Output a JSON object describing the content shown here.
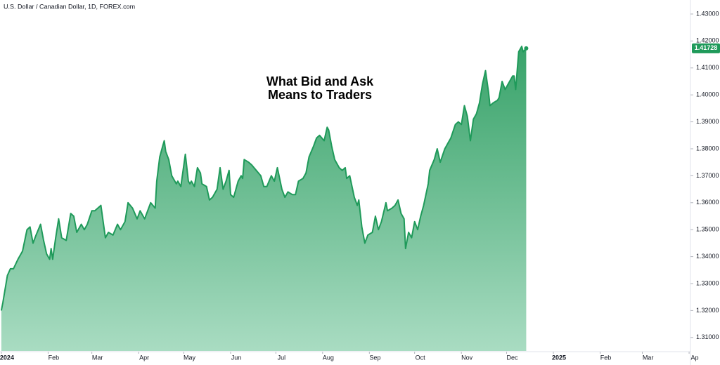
{
  "chart_data": {
    "type": "area",
    "title": "U.S. Dollar / Canadian Dollar, 1D, FOREX.com",
    "annotation": [
      "What Bid and Ask",
      "Means to Traders"
    ],
    "color": "#1f9a5a",
    "x": [
      0,
      1,
      4,
      6,
      8,
      11,
      14,
      17,
      19,
      21,
      23,
      26,
      28,
      30,
      32,
      33,
      34,
      36,
      38,
      40,
      43,
      46,
      48,
      50,
      53,
      55,
      57,
      60,
      62,
      66,
      69,
      71,
      74,
      77,
      79,
      82,
      84,
      87,
      90,
      92,
      95,
      97,
      99,
      102,
      103,
      105,
      107,
      108,
      109,
      111,
      113,
      116,
      117,
      119,
      122,
      124,
      125,
      126,
      128,
      130,
      132,
      133,
      136,
      138,
      140,
      143,
      145,
      147,
      149,
      151,
      152,
      154,
      157,
      159,
      160,
      161,
      164,
      166,
      169,
      172,
      174,
      176,
      179,
      181,
      183,
      186,
      188,
      190,
      193,
      195,
      197,
      200,
      202,
      204,
      207,
      209,
      211,
      214,
      216,
      217,
      219,
      221,
      224,
      226,
      228,
      229,
      231,
      234,
      236,
      237,
      239,
      241,
      243,
      246,
      248,
      250,
      252,
      255,
      256,
      259,
      261,
      263,
      265,
      267,
      268,
      270,
      272,
      274,
      276,
      278,
      280,
      283,
      284,
      287,
      289,
      291,
      294,
      296,
      298,
      301,
      303,
      305,
      307,
      309,
      311,
      313,
      315,
      317,
      319,
      321,
      323,
      324,
      326,
      329,
      330,
      332,
      334,
      336,
      339,
      340,
      341,
      343,
      345,
      346,
      348
    ],
    "values": [
      1.32,
      1.323,
      1.333,
      1.3355,
      1.3355,
      1.339,
      1.342,
      1.35,
      1.351,
      1.345,
      1.348,
      1.352,
      1.346,
      1.341,
      1.339,
      1.343,
      1.339,
      1.347,
      1.354,
      1.347,
      1.346,
      1.356,
      1.355,
      1.349,
      1.352,
      1.35,
      1.352,
      1.357,
      1.357,
      1.359,
      1.347,
      1.349,
      1.348,
      1.352,
      1.35,
      1.353,
      1.36,
      1.358,
      1.354,
      1.357,
      1.354,
      1.357,
      1.36,
      1.358,
      1.368,
      1.377,
      1.381,
      1.383,
      1.379,
      1.376,
      1.37,
      1.367,
      1.368,
      1.366,
      1.378,
      1.368,
      1.367,
      1.368,
      1.366,
      1.373,
      1.371,
      1.367,
      1.366,
      1.361,
      1.362,
      1.365,
      1.373,
      1.365,
      1.368,
      1.372,
      1.363,
      1.362,
      1.368,
      1.37,
      1.369,
      1.376,
      1.375,
      1.374,
      1.372,
      1.37,
      1.366,
      1.366,
      1.37,
      1.368,
      1.373,
      1.365,
      1.362,
      1.364,
      1.363,
      1.363,
      1.368,
      1.369,
      1.371,
      1.377,
      1.381,
      1.384,
      1.385,
      1.383,
      1.388,
      1.387,
      1.381,
      1.376,
      1.373,
      1.372,
      1.373,
      1.369,
      1.37,
      1.362,
      1.359,
      1.361,
      1.351,
      1.345,
      1.348,
      1.349,
      1.355,
      1.35,
      1.353,
      1.36,
      1.357,
      1.358,
      1.359,
      1.361,
      1.356,
      1.354,
      1.343,
      1.349,
      1.347,
      1.353,
      1.35,
      1.355,
      1.359,
      1.367,
      1.372,
      1.376,
      1.38,
      1.375,
      1.38,
      1.382,
      1.384,
      1.389,
      1.39,
      1.389,
      1.396,
      1.392,
      1.383,
      1.391,
      1.393,
      1.397,
      1.404,
      1.409,
      1.401,
      1.396,
      1.397,
      1.398,
      1.399,
      1.405,
      1.402,
      1.404,
      1.407,
      1.407,
      1.402,
      1.416,
      1.418,
      1.416,
      1.41728
    ],
    "last_value_label": "1.41728",
    "xlim": [
      -0.9,
      456.9
    ],
    "xticks": [
      {
        "value": 0,
        "label": "2024"
      },
      {
        "value": 31,
        "label": "Feb"
      },
      {
        "value": 60,
        "label": "Mar"
      },
      {
        "value": 91,
        "label": "Apr"
      },
      {
        "value": 121,
        "label": "May"
      },
      {
        "value": 152,
        "label": "Jun"
      },
      {
        "value": 182,
        "label": "Jul"
      },
      {
        "value": 213,
        "label": "Aug"
      },
      {
        "value": 244,
        "label": "Sep"
      },
      {
        "value": 274,
        "label": "Oct"
      },
      {
        "value": 305,
        "label": "Nov"
      },
      {
        "value": 335,
        "label": "Dec"
      },
      {
        "value": 366,
        "label": "2025"
      },
      {
        "value": 397,
        "label": "Feb"
      },
      {
        "value": 425,
        "label": "Mar"
      },
      {
        "value": 456,
        "label": "Ap"
      }
    ],
    "ylim": [
      1.305,
      1.4352
    ],
    "yticks": [
      {
        "value": 1.31,
        "label": "1.31000"
      },
      {
        "value": 1.32,
        "label": "1.32000"
      },
      {
        "value": 1.33,
        "label": "1.33000"
      },
      {
        "value": 1.34,
        "label": "1.34000"
      },
      {
        "value": 1.35,
        "label": "1.35000"
      },
      {
        "value": 1.36,
        "label": "1.36000"
      },
      {
        "value": 1.37,
        "label": "1.37000"
      },
      {
        "value": 1.38,
        "label": "1.38000"
      },
      {
        "value": 1.39,
        "label": "1.39000"
      },
      {
        "value": 1.4,
        "label": "1.40000"
      },
      {
        "value": 1.41,
        "label": "1.41000"
      },
      {
        "value": 1.42,
        "label": "1.42000"
      },
      {
        "value": 1.43,
        "label": "1.43000"
      }
    ],
    "grid": false
  }
}
